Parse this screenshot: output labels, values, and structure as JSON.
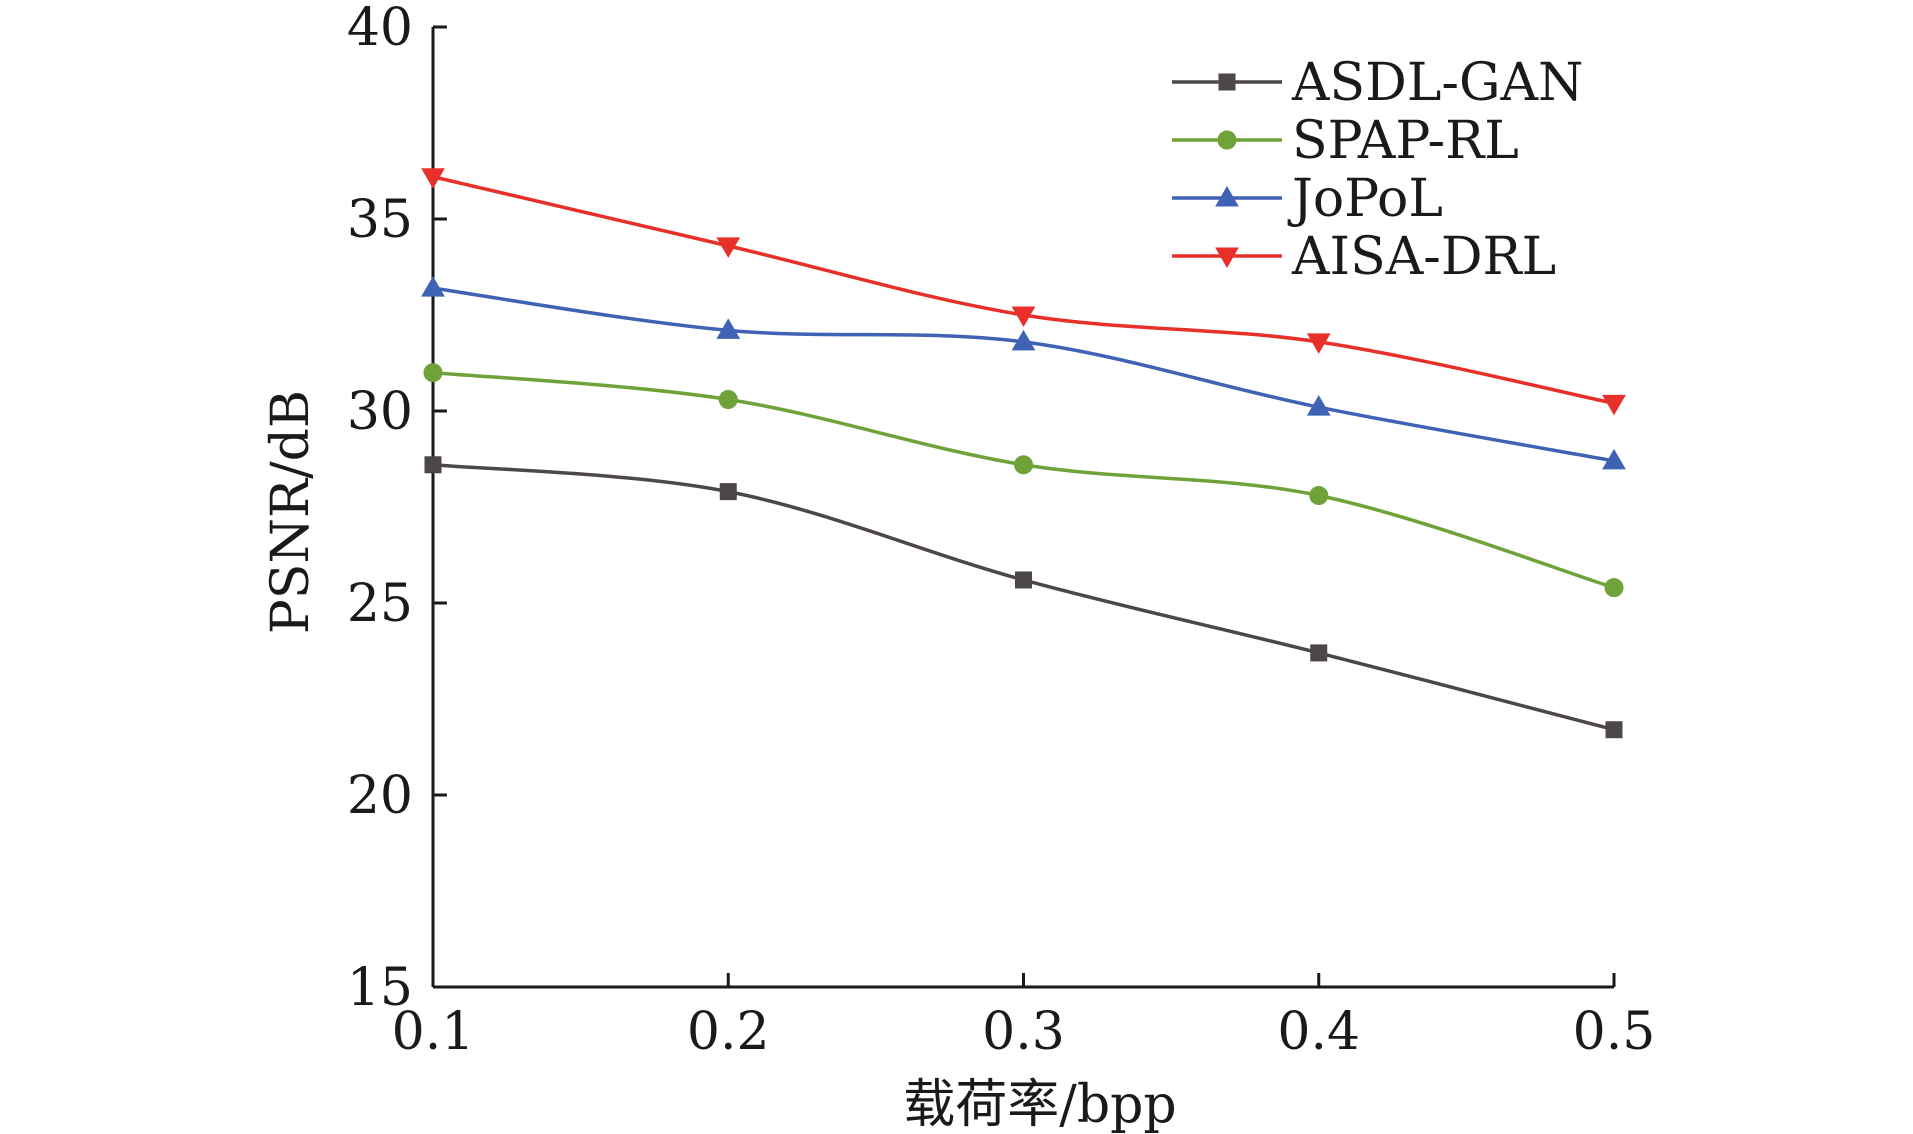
{
  "chart_data": {
    "type": "line",
    "title": "",
    "xlabel": "载荷率/bpp",
    "ylabel": "PSNR/dB",
    "x": [
      0.1,
      0.2,
      0.3,
      0.4,
      0.5
    ],
    "x_tick_labels": [
      "0.1",
      "0.2",
      "0.3",
      "0.4",
      "0.5"
    ],
    "y_tick_labels": [
      "15",
      "20",
      "25",
      "30",
      "35",
      "40"
    ],
    "xlim": [
      0.1,
      0.5
    ],
    "ylim": [
      15,
      40
    ],
    "y_ticks": [
      15,
      20,
      25,
      30,
      35,
      40
    ],
    "grid": false,
    "legend_position": "top-right",
    "series": [
      {
        "name": "ASDL-GAN",
        "marker": "square",
        "color": "#4d4747",
        "values": [
          28.6,
          27.9,
          25.6,
          23.7,
          21.7
        ]
      },
      {
        "name": "SPAP-RL",
        "marker": "circle",
        "color": "#6fa33a",
        "values": [
          31.0,
          30.3,
          28.6,
          27.8,
          25.4
        ]
      },
      {
        "name": "JoPoL",
        "marker": "triangle-up",
        "color": "#3f62b5",
        "values": [
          33.2,
          32.1,
          31.8,
          30.1,
          28.7
        ]
      },
      {
        "name": "AISA-DRL",
        "marker": "triangle-down",
        "color": "#e8302a",
        "values": [
          36.1,
          34.3,
          32.5,
          31.8,
          30.2
        ]
      }
    ]
  }
}
